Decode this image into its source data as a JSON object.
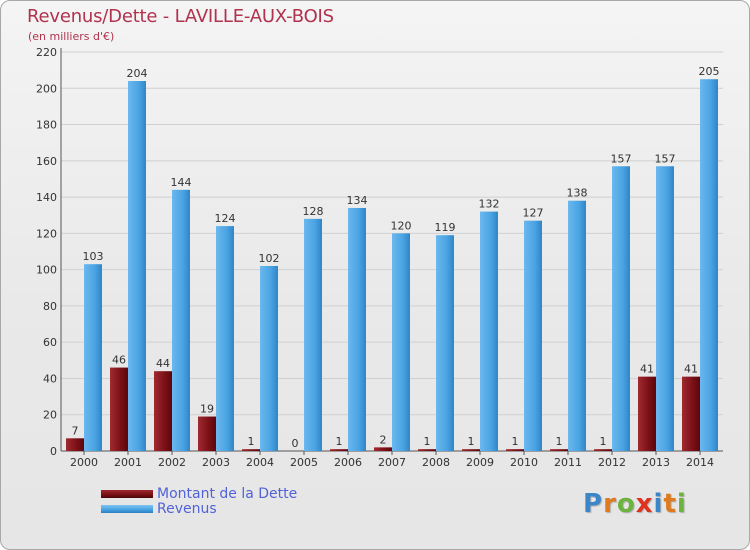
{
  "title": "Revenus/Dette - LAVILLE-AUX-BOIS",
  "subtitle": "(en milliers d'€)",
  "brand": {
    "letters": [
      "P",
      "r",
      "o",
      "x",
      "i",
      "t",
      "i"
    ],
    "colors": [
      "#3a86c8",
      "#e07a1f",
      "#6cb33f",
      "#e0301e",
      "#3a86c8",
      "#e07a1f",
      "#6cb33f"
    ]
  },
  "colors": {
    "debt": "#7a1016",
    "revenue": "#4aa3e3",
    "grid": "#d0d0d0",
    "axis": "#555555"
  },
  "chart_data": {
    "type": "bar",
    "categories": [
      "2000",
      "2001",
      "2002",
      "2003",
      "2004",
      "2005",
      "2006",
      "2007",
      "2008",
      "2009",
      "2010",
      "2011",
      "2012",
      "2013",
      "2014"
    ],
    "series": [
      {
        "name": "Montant de la Dette",
        "values": [
          7,
          46,
          44,
          19,
          1,
          0,
          1,
          2,
          1,
          1,
          1,
          1,
          1,
          41,
          41
        ]
      },
      {
        "name": "Revenus",
        "values": [
          103,
          204,
          144,
          124,
          102,
          128,
          134,
          120,
          119,
          132,
          127,
          138,
          157,
          157,
          205
        ]
      }
    ],
    "ylim": [
      0,
      220
    ],
    "yticks": [
      0,
      20,
      40,
      60,
      80,
      100,
      120,
      140,
      160,
      180,
      200,
      220
    ],
    "grid": true,
    "legend_position": "bottom-left"
  }
}
